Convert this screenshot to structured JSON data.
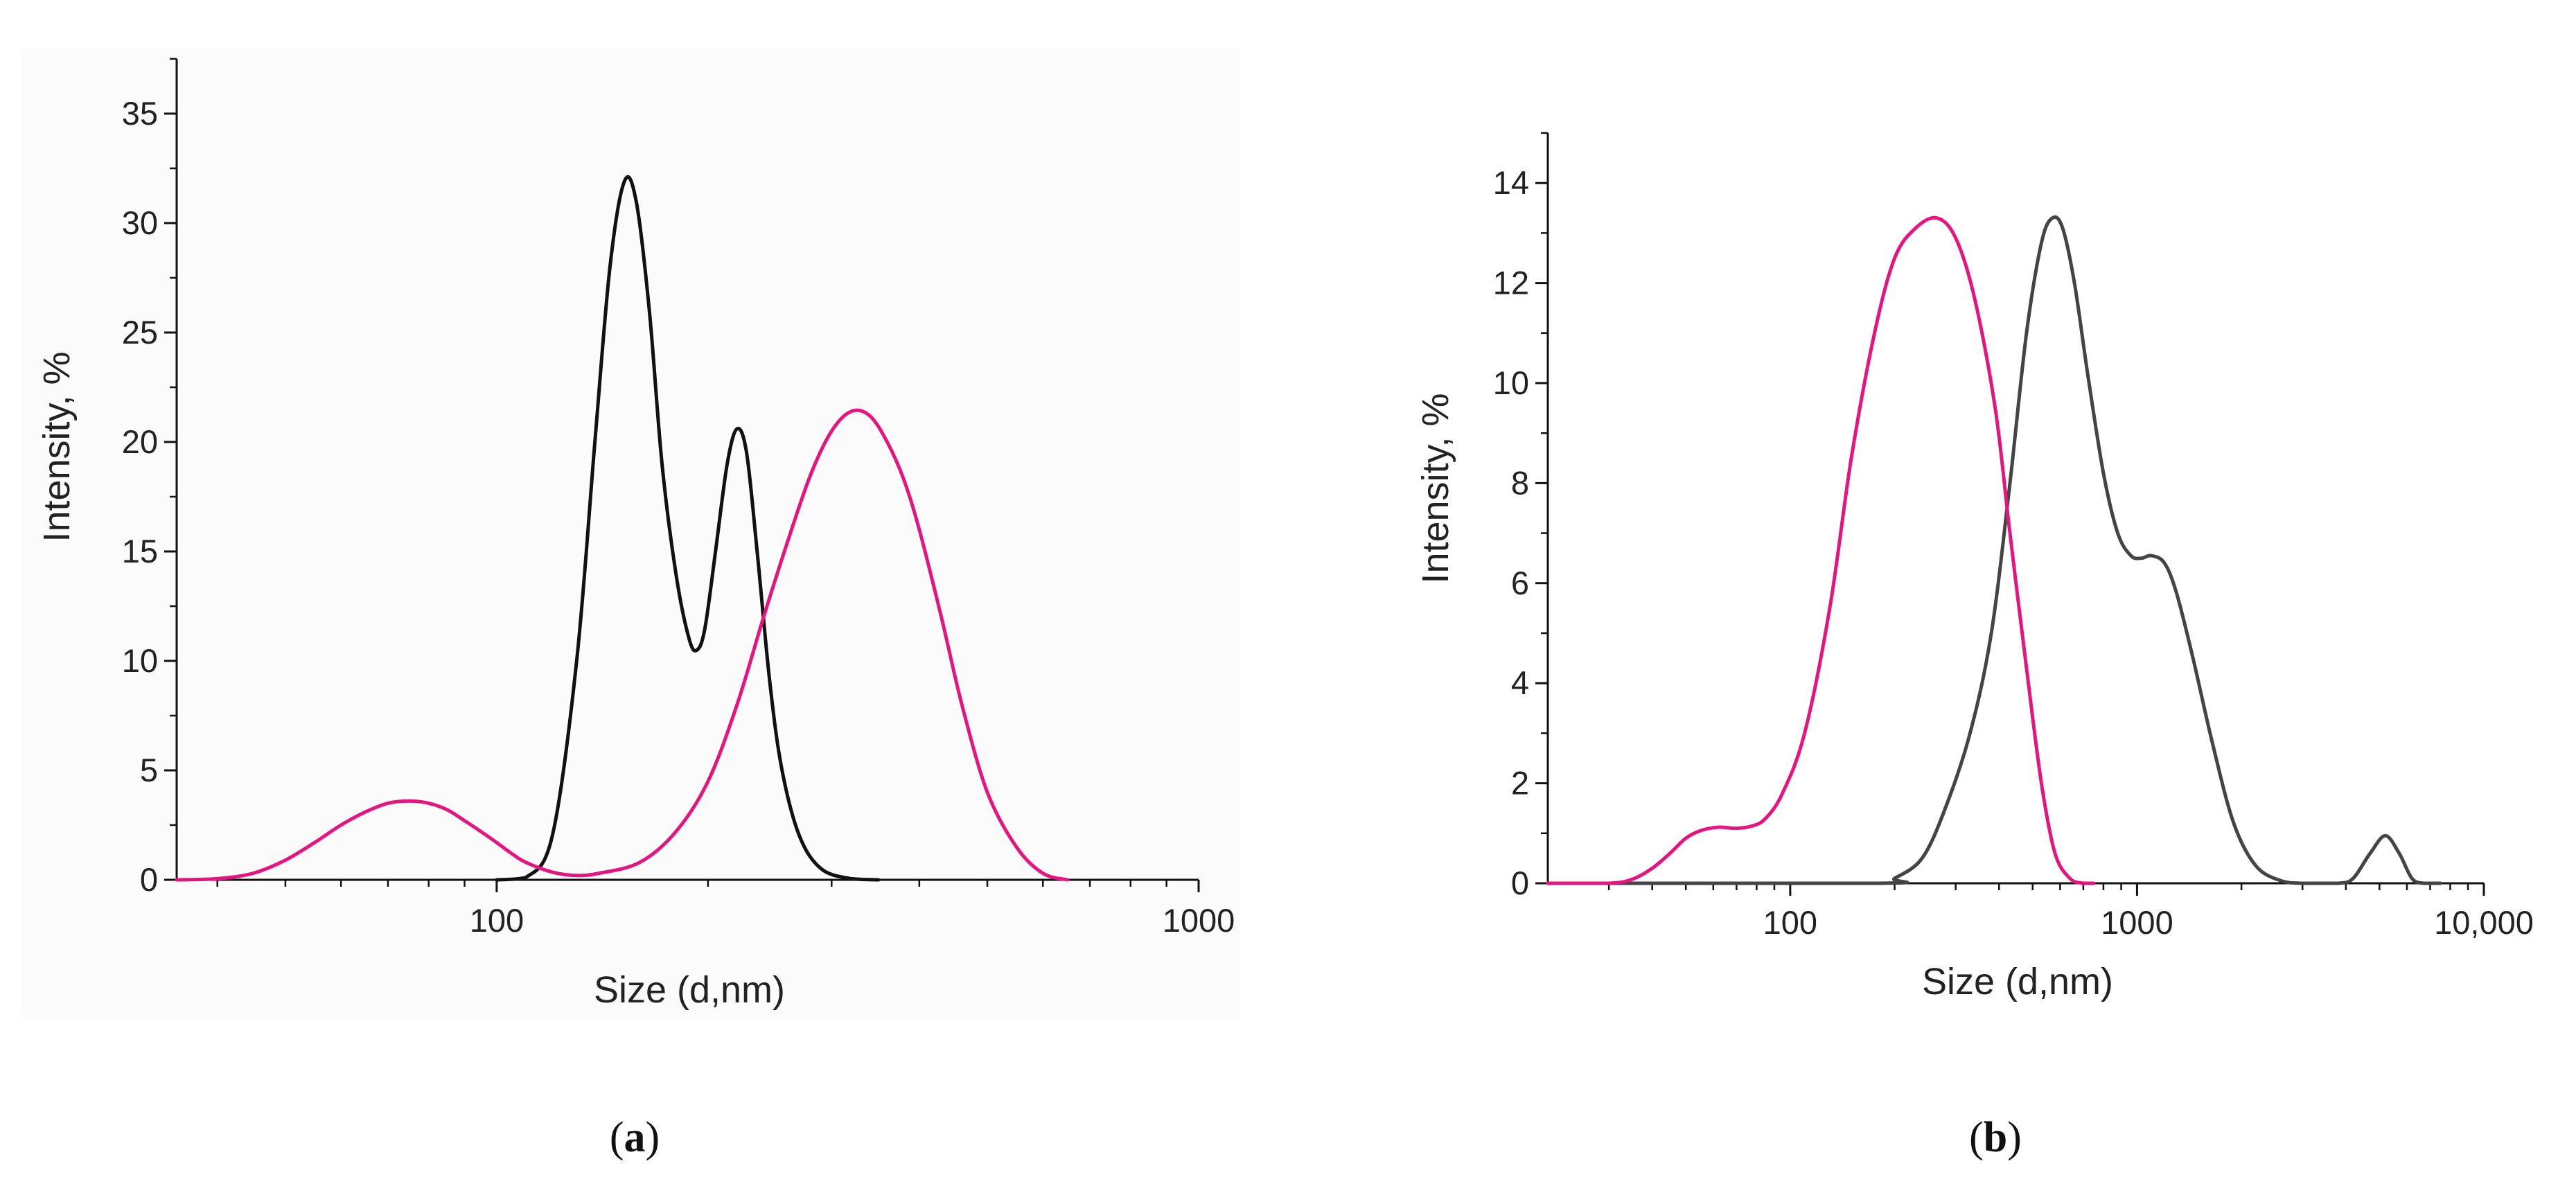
{
  "figure": {
    "panel_a_label": "a",
    "panel_b_label": "b"
  },
  "chart_data": [
    {
      "id": "a",
      "type": "line",
      "xscale": "log",
      "xlim": [
        35,
        1000
      ],
      "ylim": [
        0,
        37.5
      ],
      "xticks": [
        {
          "value": 100,
          "label": "100"
        },
        {
          "value": 1000,
          "label": "1000"
        }
      ],
      "yticks": [
        {
          "value": 0,
          "label": "0"
        },
        {
          "value": 5,
          "label": "5"
        },
        {
          "value": 10,
          "label": "10"
        },
        {
          "value": 15,
          "label": "15"
        },
        {
          "value": 20,
          "label": "20"
        },
        {
          "value": 25,
          "label": "25"
        },
        {
          "value": 30,
          "label": "30"
        },
        {
          "value": 35,
          "label": "35"
        }
      ],
      "minor_y_step": 2.5,
      "xlabel": "Size (d,nm)",
      "ylabel": "Intensity, %",
      "series": [
        {
          "name": "black curve",
          "color": "#111111",
          "points": [
            [
              100,
              0
            ],
            [
              110,
              0.1
            ],
            [
              120,
              2
            ],
            [
              130,
              10
            ],
            [
              138,
              20
            ],
            [
              145,
              28
            ],
            [
              152,
              31.9
            ],
            [
              158,
              31
            ],
            [
              165,
              26
            ],
            [
              172,
              19
            ],
            [
              180,
              14
            ],
            [
              188,
              11
            ],
            [
              193,
              10.5
            ],
            [
              198,
              11.5
            ],
            [
              205,
              15
            ],
            [
              213,
              19
            ],
            [
              220,
              20.6
            ],
            [
              227,
              19.5
            ],
            [
              235,
              15
            ],
            [
              245,
              9
            ],
            [
              255,
              5
            ],
            [
              270,
              2
            ],
            [
              290,
              0.5
            ],
            [
              320,
              0.05
            ],
            [
              350,
              0
            ]
          ]
        },
        {
          "name": "magenta curve",
          "color": "#e5157f",
          "points": [
            [
              35,
              0
            ],
            [
              40,
              0.05
            ],
            [
              45,
              0.3
            ],
            [
              50,
              0.9
            ],
            [
              55,
              1.7
            ],
            [
              60,
              2.5
            ],
            [
              65,
              3.1
            ],
            [
              70,
              3.5
            ],
            [
              75,
              3.6
            ],
            [
              80,
              3.5
            ],
            [
              85,
              3.2
            ],
            [
              90,
              2.7
            ],
            [
              95,
              2.2
            ],
            [
              100,
              1.7
            ],
            [
              105,
              1.2
            ],
            [
              110,
              0.8
            ],
            [
              120,
              0.35
            ],
            [
              130,
              0.2
            ],
            [
              140,
              0.3
            ],
            [
              160,
              0.8
            ],
            [
              180,
              2.2
            ],
            [
              200,
              4.5
            ],
            [
              220,
              8
            ],
            [
              240,
              12
            ],
            [
              260,
              15.5
            ],
            [
              280,
              18.5
            ],
            [
              300,
              20.5
            ],
            [
              320,
              21.4
            ],
            [
              340,
              21.2
            ],
            [
              360,
              20
            ],
            [
              380,
              18.3
            ],
            [
              400,
              16
            ],
            [
              430,
              12
            ],
            [
              460,
              8
            ],
            [
              500,
              4
            ],
            [
              550,
              1.5
            ],
            [
              600,
              0.3
            ],
            [
              650,
              0
            ]
          ]
        }
      ]
    },
    {
      "id": "b",
      "type": "line",
      "xscale": "log",
      "xlim": [
        20,
        10000
      ],
      "ylim": [
        0,
        15
      ],
      "xticks": [
        {
          "value": 100,
          "label": "100"
        },
        {
          "value": 1000,
          "label": "1000"
        },
        {
          "value": 10000,
          "label": "10,000"
        }
      ],
      "yticks": [
        {
          "value": 0,
          "label": "0"
        },
        {
          "value": 2,
          "label": "2"
        },
        {
          "value": 4,
          "label": "4"
        },
        {
          "value": 6,
          "label": "6"
        },
        {
          "value": 8,
          "label": "8"
        },
        {
          "value": 10,
          "label": "10"
        },
        {
          "value": 12,
          "label": "12"
        },
        {
          "value": 14,
          "label": "14"
        }
      ],
      "minor_y_step": 1,
      "xlabel": "Size (d,nm)",
      "ylabel": "Intensity, %",
      "series": [
        {
          "name": "dark gray curve",
          "color": "#444444",
          "points": [
            [
              20,
              0
            ],
            [
              180,
              0
            ],
            [
              200,
              0.1
            ],
            [
              240,
              0.5
            ],
            [
              280,
              1.5
            ],
            [
              330,
              3
            ],
            [
              380,
              5
            ],
            [
              430,
              8
            ],
            [
              480,
              11
            ],
            [
              530,
              12.8
            ],
            [
              570,
              13.3
            ],
            [
              610,
              13.1
            ],
            [
              660,
              12
            ],
            [
              720,
              10.2
            ],
            [
              800,
              8.2
            ],
            [
              880,
              7
            ],
            [
              960,
              6.55
            ],
            [
              1030,
              6.5
            ],
            [
              1100,
              6.55
            ],
            [
              1200,
              6.4
            ],
            [
              1300,
              5.8
            ],
            [
              1450,
              4.5
            ],
            [
              1650,
              2.8
            ],
            [
              1900,
              1.2
            ],
            [
              2200,
              0.35
            ],
            [
              2600,
              0.05
            ],
            [
              3000,
              0
            ],
            [
              3800,
              0
            ],
            [
              4200,
              0.1
            ],
            [
              4700,
              0.6
            ],
            [
              5200,
              0.95
            ],
            [
              5700,
              0.6
            ],
            [
              6200,
              0.1
            ],
            [
              6700,
              0
            ],
            [
              7500,
              0
            ]
          ]
        },
        {
          "name": "magenta curve",
          "color": "#e5157f",
          "points": [
            [
              20,
              0
            ],
            [
              30,
              0
            ],
            [
              35,
              0.08
            ],
            [
              40,
              0.3
            ],
            [
              45,
              0.6
            ],
            [
              50,
              0.9
            ],
            [
              55,
              1.05
            ],
            [
              62,
              1.12
            ],
            [
              70,
              1.1
            ],
            [
              78,
              1.15
            ],
            [
              85,
              1.3
            ],
            [
              95,
              1.8
            ],
            [
              110,
              3
            ],
            [
              130,
              5.5
            ],
            [
              150,
              8.5
            ],
            [
              175,
              11
            ],
            [
              200,
              12.5
            ],
            [
              230,
              13.1
            ],
            [
              265,
              13.3
            ],
            [
              300,
              12.9
            ],
            [
              340,
              11.7
            ],
            [
              390,
              9.5
            ],
            [
              430,
              7
            ],
            [
              480,
              4.3
            ],
            [
              530,
              2
            ],
            [
              580,
              0.6
            ],
            [
              640,
              0.1
            ],
            [
              700,
              0
            ],
            [
              750,
              0
            ]
          ]
        }
      ]
    }
  ]
}
